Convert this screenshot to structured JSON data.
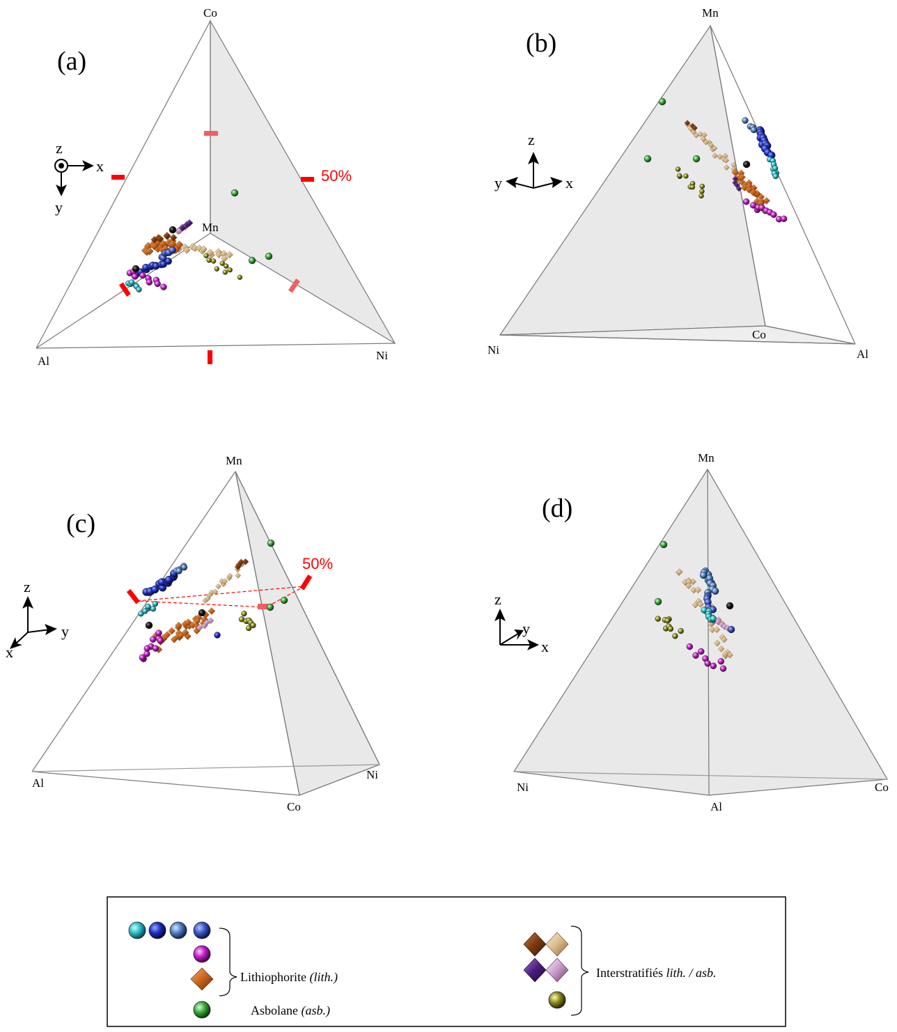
{
  "panels": [
    {
      "id": "a",
      "label": "(a)",
      "vertices": [
        "Co",
        "Mn",
        "Al",
        "Ni"
      ],
      "axes": [
        "z",
        "x",
        "y"
      ],
      "marker_label": "50%"
    },
    {
      "id": "b",
      "label": "(b)",
      "vertices": [
        "Mn",
        "Ni",
        "Co",
        "Al"
      ],
      "axes": [
        "z",
        "y",
        "x"
      ]
    },
    {
      "id": "c",
      "label": "(c)",
      "vertices": [
        "Mn",
        "Al",
        "Co",
        "Ni"
      ],
      "axes": [
        "z",
        "x",
        "y"
      ],
      "marker_label": "50%"
    },
    {
      "id": "d",
      "label": "(d)",
      "vertices": [
        "Mn",
        "Ni",
        "Al",
        "Co"
      ],
      "axes": [
        "z",
        "y",
        "x"
      ]
    }
  ],
  "legend": {
    "lith_label": "Lithiophorite",
    "lith_abbr": "(lith.)",
    "asb_label": "Asbolane",
    "asb_abbr": "(asb.)",
    "inter_label": "Interstratifiés",
    "inter_abbr": "lith. / asb.",
    "colors": {
      "lith_cyan": "#2bbcc6",
      "lith_blue": "#1d2fc0",
      "lith_steel": "#4f7fc0",
      "lith_royal": "#3c56c8",
      "lith_magenta": "#c21cc6",
      "asb_orange": "#c8641e",
      "green": "#3aa83a",
      "inter_brown": "#7a3a10",
      "inter_tan": "#d9b98a",
      "inter_purple": "#4a1c7a",
      "inter_pink": "#c89ac8",
      "inter_olive": "#8a8a1e"
    }
  }
}
